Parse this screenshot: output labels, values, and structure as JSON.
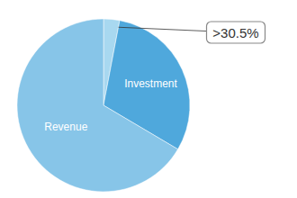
{
  "chart_data": {
    "type": "pie",
    "categories": [
      null,
      "Investment",
      "Revenue"
    ],
    "values": [
      0.03,
      0.305,
      0.665
    ],
    "colors": [
      "#a8d8f0",
      "#4fa8dc",
      "#87c5e8"
    ],
    "annotations": [
      ">30.5%"
    ]
  }
}
